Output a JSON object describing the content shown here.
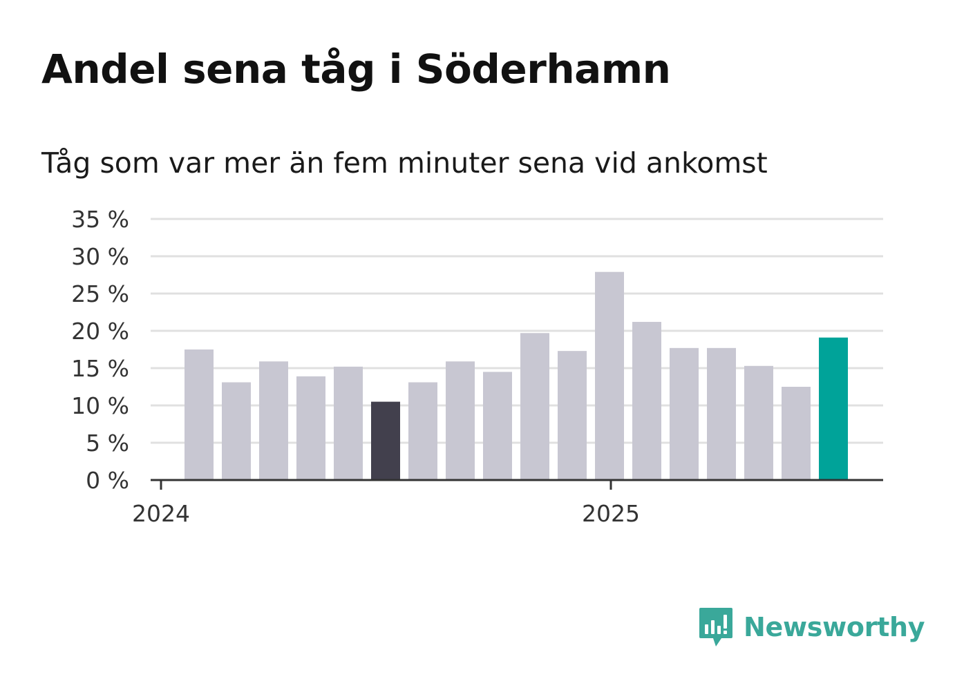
{
  "header": {
    "title": "Andel sena tåg i Söderhamn",
    "subtitle": "Tåg som var mer än fem minuter sena vid ankomst"
  },
  "brand": {
    "name": "Newsworthy",
    "color": "#3aa89a"
  },
  "colors": {
    "bar_default": "#c8c7d2",
    "bar_highlight_dark": "#42404d",
    "bar_highlight_current": "#00a399",
    "gridline": "#e0e0e0",
    "axis": "#333333"
  },
  "chart_data": {
    "type": "bar",
    "title": "Andel sena tåg i Söderhamn",
    "subtitle": "Tåg som var mer än fem minuter sena vid ankomst",
    "xlabel": "",
    "ylabel": "",
    "ylim": [
      0,
      35
    ],
    "y_ticks": [
      0,
      5,
      10,
      15,
      20,
      25,
      30,
      35
    ],
    "y_tick_labels": [
      "0 %",
      "5 %",
      "10 %",
      "15 %",
      "20 %",
      "25 %",
      "30 %",
      "35 %"
    ],
    "x_tick_labels": [
      "2024",
      "2025"
    ],
    "grid": true,
    "legend": "none",
    "series": [
      {
        "values": [
          17.5,
          13.1,
          15.9,
          13.9,
          15.2,
          10.5,
          13.1,
          15.9,
          14.5,
          19.7,
          17.3,
          27.9,
          21.2,
          17.7,
          17.7,
          15.3,
          12.5,
          19.1
        ],
        "highlight": [
          "default",
          "default",
          "default",
          "default",
          "default",
          "dark",
          "default",
          "default",
          "default",
          "default",
          "default",
          "default",
          "default",
          "default",
          "default",
          "default",
          "default",
          "current"
        ]
      }
    ]
  }
}
